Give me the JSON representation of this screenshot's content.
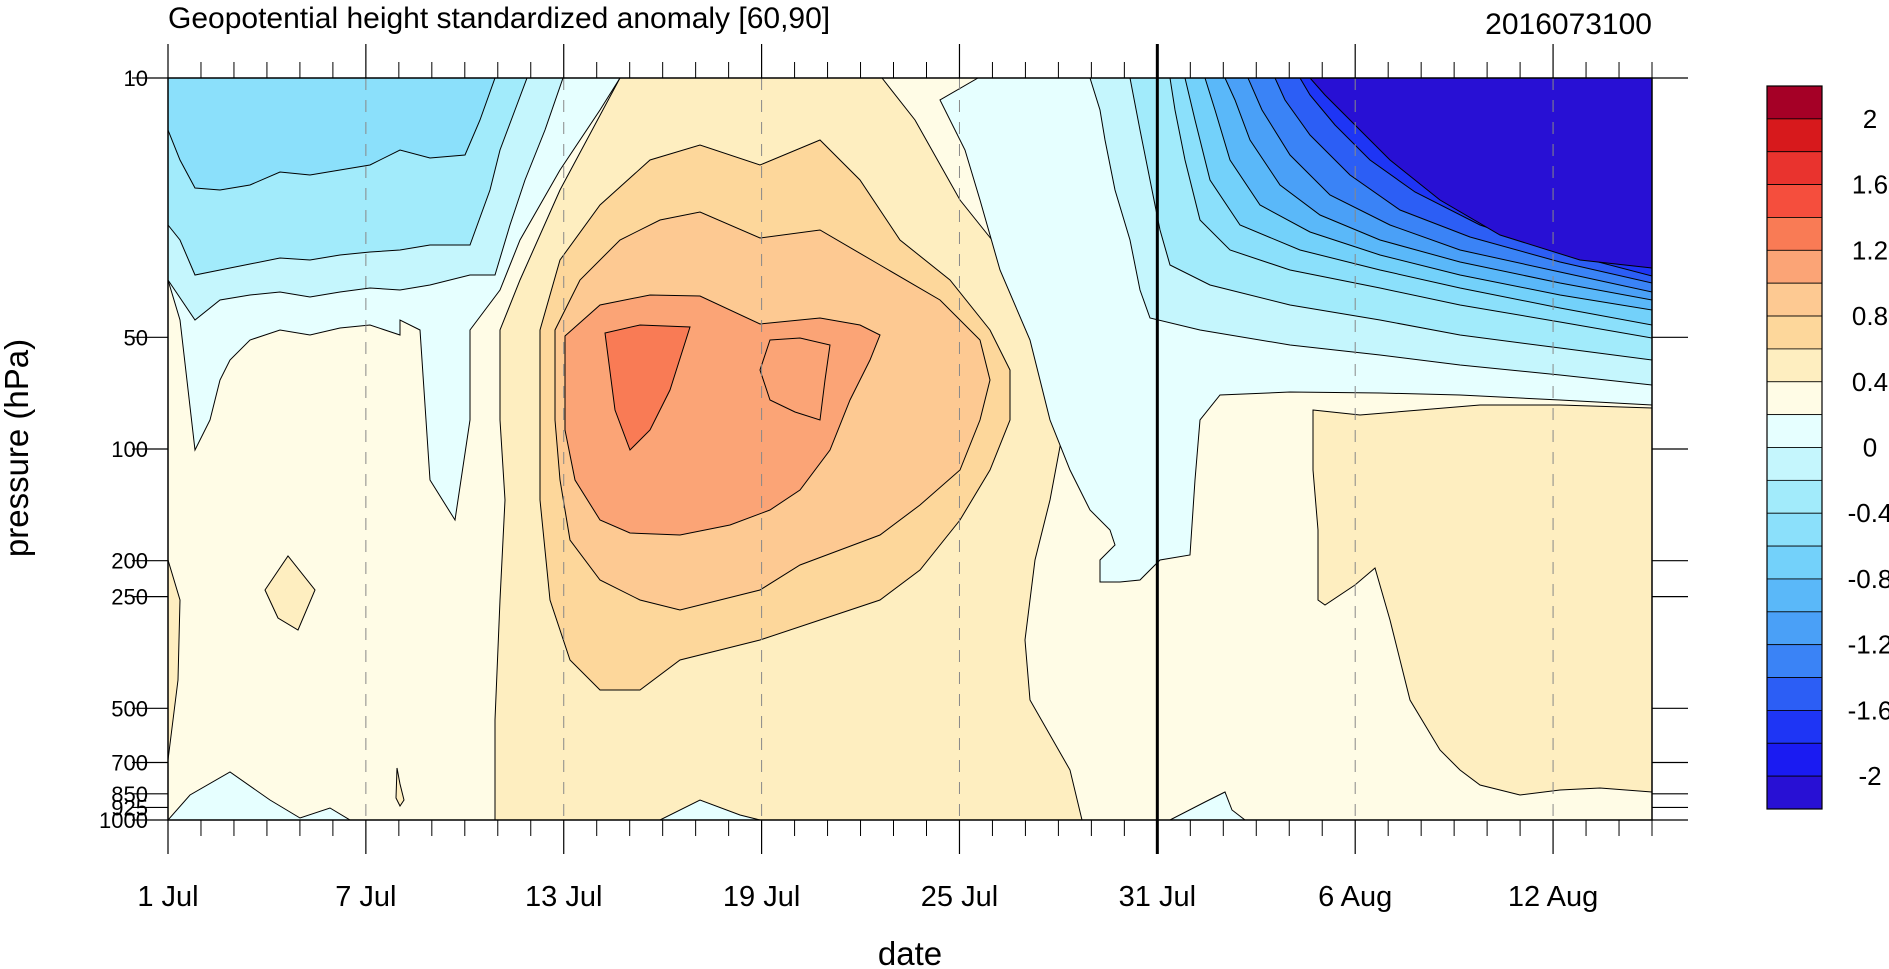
{
  "chart_data": {
    "type": "heatmap",
    "title": "Geopotential height standardized anomaly [60,90]",
    "timestamp": "2016073100",
    "xlabel": "date",
    "ylabel": "pressure (hPa)",
    "x_tick_labels": [
      "1 Jul",
      "7 Jul",
      "13 Jul",
      "19 Jul",
      "25 Jul",
      "31 Jul",
      "6 Aug",
      "12 Aug"
    ],
    "x_tick_days": [
      0,
      6,
      12,
      18,
      24,
      30,
      36,
      42
    ],
    "x_range_days": [
      0,
      45
    ],
    "current_date_marker_day": 30,
    "y_scale": "log",
    "y_reversed": true,
    "y_range": [
      10,
      1000
    ],
    "y_levels": [
      10,
      50,
      100,
      200,
      250,
      500,
      700,
      850,
      925,
      1000
    ],
    "y_tick_labels": [
      "10",
      "50",
      "100",
      "200",
      "250",
      "500",
      "700",
      "850",
      "925",
      "1000"
    ],
    "grid": "dashed vertical lines at labelled dates",
    "colorbar": {
      "labels": [
        "2",
        "1.6",
        "1.2",
        "0.8",
        "0.4",
        "0",
        "-0.4",
        "-0.8",
        "-1.2",
        "-1.6",
        "-2"
      ],
      "levels": [
        -2.2,
        -2.0,
        -1.8,
        -1.6,
        -1.4,
        -1.2,
        -1.0,
        -0.8,
        -0.6,
        -0.4,
        -0.2,
        0,
        0.2,
        0.4,
        0.6,
        0.8,
        1.0,
        1.2,
        1.4,
        1.6,
        1.8,
        2.0
      ],
      "colors": [
        "#a50026",
        "#d7191c",
        "#e9332e",
        "#f54e3d",
        "#f97b55",
        "#fba476",
        "#fdc992",
        "#fdd79b",
        "#feeec0",
        "#fffce6",
        "#e6ffff",
        "#c5f6fd",
        "#a2ebfb",
        "#8be0fb",
        "#73d1fa",
        "#5ab8f9",
        "#4aa0f7",
        "#3a83f6",
        "#2c5ef5",
        "#1e35f5",
        "#1a1bf2",
        "#2810d4"
      ]
    },
    "anomaly_regions": [
      {
        "name": "stratospheric negative anomaly early July",
        "days": [
          0,
          12
        ],
        "pressure_hPa": [
          10,
          140
        ],
        "min": -0.6
      },
      {
        "name": "positive anomaly mid July",
        "days": [
          11,
          29
        ],
        "pressure_hPa": [
          10,
          1000
        ],
        "max": 1.2
      },
      {
        "name": "strong negative anomaly August stratosphere",
        "days": [
          30,
          45
        ],
        "pressure_hPa": [
          10,
          80
        ],
        "min": -2.2
      },
      {
        "name": "weak positive anomaly August troposphere",
        "days": [
          35,
          45
        ],
        "pressure_hPa": [
          90,
          850
        ],
        "max": 0.4
      }
    ]
  }
}
